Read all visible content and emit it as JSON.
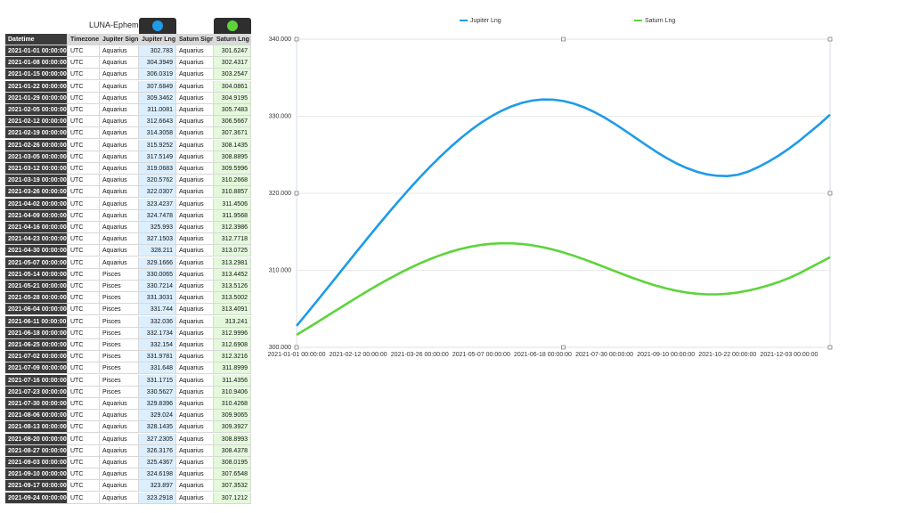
{
  "table": {
    "title": "LUNA-Ephemeris",
    "columns": [
      "Datetime",
      "Timezone",
      "Jupiter Sign",
      "Jupiter Lng",
      "Saturn Sign",
      "Saturn Lng"
    ],
    "rows": [
      [
        "2021-01-01 00:00:00",
        "UTC",
        "Aquarius",
        302.783,
        "Aquarius",
        301.6247
      ],
      [
        "2021-01-08 00:00:00",
        "UTC",
        "Aquarius",
        304.3949,
        "Aquarius",
        302.4317
      ],
      [
        "2021-01-15 00:00:00",
        "UTC",
        "Aquarius",
        306.0319,
        "Aquarius",
        303.2547
      ],
      [
        "2021-01-22 00:00:00",
        "UTC",
        "Aquarius",
        307.6849,
        "Aquarius",
        304.0861
      ],
      [
        "2021-01-29 00:00:00",
        "UTC",
        "Aquarius",
        309.3462,
        "Aquarius",
        304.9195
      ],
      [
        "2021-02-05 00:00:00",
        "UTC",
        "Aquarius",
        311.0081,
        "Aquarius",
        305.7483
      ],
      [
        "2021-02-12 00:00:00",
        "UTC",
        "Aquarius",
        312.6643,
        "Aquarius",
        306.5667
      ],
      [
        "2021-02-19 00:00:00",
        "UTC",
        "Aquarius",
        314.3058,
        "Aquarius",
        307.3671
      ],
      [
        "2021-02-26 00:00:00",
        "UTC",
        "Aquarius",
        315.9252,
        "Aquarius",
        308.1435
      ],
      [
        "2021-03-05 00:00:00",
        "UTC",
        "Aquarius",
        317.5149,
        "Aquarius",
        308.8895
      ],
      [
        "2021-03-12 00:00:00",
        "UTC",
        "Aquarius",
        319.0683,
        "Aquarius",
        309.5996
      ],
      [
        "2021-03-19 00:00:00",
        "UTC",
        "Aquarius",
        320.5762,
        "Aquarius",
        310.2668
      ],
      [
        "2021-03-26 00:00:00",
        "UTC",
        "Aquarius",
        322.0307,
        "Aquarius",
        310.8857
      ],
      [
        "2021-04-02 00:00:00",
        "UTC",
        "Aquarius",
        323.4237,
        "Aquarius",
        311.4506
      ],
      [
        "2021-04-09 00:00:00",
        "UTC",
        "Aquarius",
        324.7478,
        "Aquarius",
        311.9568
      ],
      [
        "2021-04-16 00:00:00",
        "UTC",
        "Aquarius",
        325.993,
        "Aquarius",
        312.3986
      ],
      [
        "2021-04-23 00:00:00",
        "UTC",
        "Aquarius",
        327.1503,
        "Aquarius",
        312.7718
      ],
      [
        "2021-04-30 00:00:00",
        "UTC",
        "Aquarius",
        328.211,
        "Aquarius",
        313.0725
      ],
      [
        "2021-05-07 00:00:00",
        "UTC",
        "Aquarius",
        329.1666,
        "Aquarius",
        313.2981
      ],
      [
        "2021-05-14 00:00:00",
        "UTC",
        "Pisces",
        330.0065,
        "Aquarius",
        313.4452
      ],
      [
        "2021-05-21 00:00:00",
        "UTC",
        "Pisces",
        330.7214,
        "Aquarius",
        313.5126
      ],
      [
        "2021-05-28 00:00:00",
        "UTC",
        "Pisces",
        331.3031,
        "Aquarius",
        313.5002
      ],
      [
        "2021-06-04 00:00:00",
        "UTC",
        "Pisces",
        331.744,
        "Aquarius",
        313.4091
      ],
      [
        "2021-06-11 00:00:00",
        "UTC",
        "Pisces",
        332.036,
        "Aquarius",
        313.241
      ],
      [
        "2021-06-18 00:00:00",
        "UTC",
        "Pisces",
        332.1734,
        "Aquarius",
        312.9996
      ],
      [
        "2021-06-25 00:00:00",
        "UTC",
        "Pisces",
        332.154,
        "Aquarius",
        312.6908
      ],
      [
        "2021-07-02 00:00:00",
        "UTC",
        "Pisces",
        331.9781,
        "Aquarius",
        312.3216
      ],
      [
        "2021-07-09 00:00:00",
        "UTC",
        "Pisces",
        331.648,
        "Aquarius",
        311.8999
      ],
      [
        "2021-07-16 00:00:00",
        "UTC",
        "Pisces",
        331.1715,
        "Aquarius",
        311.4356
      ],
      [
        "2021-07-23 00:00:00",
        "UTC",
        "Pisces",
        330.5627,
        "Aquarius",
        310.9406
      ],
      [
        "2021-07-30 00:00:00",
        "UTC",
        "Aquarius",
        329.8396,
        "Aquarius",
        310.4268
      ],
      [
        "2021-08-06 00:00:00",
        "UTC",
        "Aquarius",
        329.024,
        "Aquarius",
        309.9065
      ],
      [
        "2021-08-13 00:00:00",
        "UTC",
        "Aquarius",
        328.1435,
        "Aquarius",
        309.3927
      ],
      [
        "2021-08-20 00:00:00",
        "UTC",
        "Aquarius",
        327.2305,
        "Aquarius",
        308.8993
      ],
      [
        "2021-08-27 00:00:00",
        "UTC",
        "Aquarius",
        326.3176,
        "Aquarius",
        308.4378
      ],
      [
        "2021-09-03 00:00:00",
        "UTC",
        "Aquarius",
        325.4367,
        "Aquarius",
        308.0195
      ],
      [
        "2021-09-10 00:00:00",
        "UTC",
        "Aquarius",
        324.6198,
        "Aquarius",
        307.6548
      ],
      [
        "2021-09-17 00:00:00",
        "UTC",
        "Aquarius",
        323.897,
        "Aquarius",
        307.3532
      ],
      [
        "2021-09-24 00:00:00",
        "UTC",
        "Aquarius",
        323.2918,
        "Aquarius",
        307.1212
      ]
    ]
  },
  "chart_data": {
    "type": "line",
    "x": [
      "2021-01-01 00:00:00",
      "2021-01-08 00:00:00",
      "2021-01-15 00:00:00",
      "2021-01-22 00:00:00",
      "2021-01-29 00:00:00",
      "2021-02-05 00:00:00",
      "2021-02-12 00:00:00",
      "2021-02-19 00:00:00",
      "2021-02-26 00:00:00",
      "2021-03-05 00:00:00",
      "2021-03-12 00:00:00",
      "2021-03-19 00:00:00",
      "2021-03-26 00:00:00",
      "2021-04-02 00:00:00",
      "2021-04-09 00:00:00",
      "2021-04-16 00:00:00",
      "2021-04-23 00:00:00",
      "2021-04-30 00:00:00",
      "2021-05-07 00:00:00",
      "2021-05-14 00:00:00",
      "2021-05-21 00:00:00",
      "2021-05-28 00:00:00",
      "2021-06-04 00:00:00",
      "2021-06-11 00:00:00",
      "2021-06-18 00:00:00",
      "2021-06-25 00:00:00",
      "2021-07-02 00:00:00",
      "2021-07-09 00:00:00",
      "2021-07-16 00:00:00",
      "2021-07-23 00:00:00",
      "2021-07-30 00:00:00",
      "2021-08-06 00:00:00",
      "2021-08-13 00:00:00",
      "2021-08-20 00:00:00",
      "2021-08-27 00:00:00",
      "2021-09-03 00:00:00",
      "2021-09-10 00:00:00",
      "2021-09-17 00:00:00",
      "2021-09-24 00:00:00",
      "2021-10-01 00:00:00",
      "2021-10-08 00:00:00",
      "2021-10-15 00:00:00",
      "2021-10-22 00:00:00",
      "2021-10-29 00:00:00",
      "2021-11-05 00:00:00",
      "2021-11-12 00:00:00",
      "2021-11-19 00:00:00",
      "2021-11-26 00:00:00",
      "2021-12-03 00:00:00",
      "2021-12-10 00:00:00",
      "2021-12-17 00:00:00",
      "2021-12-24 00:00:00",
      "2021-12-31 00:00:00"
    ],
    "series": [
      {
        "name": "Jupiter Lng",
        "color": "#1e9be9",
        "values": [
          302.783,
          304.3949,
          306.0319,
          307.6849,
          309.3462,
          311.0081,
          312.6643,
          314.3058,
          315.9252,
          317.5149,
          319.0683,
          320.5762,
          322.0307,
          323.4237,
          324.7478,
          325.993,
          327.1503,
          328.211,
          329.1666,
          330.0065,
          330.7214,
          331.3031,
          331.744,
          332.036,
          332.1734,
          332.154,
          331.9781,
          331.648,
          331.1715,
          330.5627,
          329.8396,
          329.024,
          328.1435,
          327.2305,
          326.3176,
          325.4367,
          324.6198,
          323.897,
          323.2918,
          322.8,
          322.45,
          322.27,
          322.23,
          322.4,
          322.8,
          323.4,
          324.1,
          324.9,
          325.8,
          326.8,
          327.9,
          329.0,
          330.2
        ]
      },
      {
        "name": "Saturn Lng",
        "color": "#5cd43a",
        "values": [
          301.6247,
          302.4317,
          303.2547,
          304.0861,
          304.9195,
          305.7483,
          306.5667,
          307.3671,
          308.1435,
          308.8895,
          309.5996,
          310.2668,
          310.8857,
          311.4506,
          311.9568,
          312.3986,
          312.7718,
          313.0725,
          313.2981,
          313.4452,
          313.5126,
          313.5002,
          313.4091,
          313.241,
          312.9996,
          312.6908,
          312.3216,
          311.8999,
          311.4356,
          310.9406,
          310.4268,
          309.9065,
          309.3927,
          308.8993,
          308.4378,
          308.0195,
          307.6548,
          307.3532,
          307.1212,
          306.96,
          306.88,
          306.88,
          306.96,
          307.12,
          307.36,
          307.67,
          308.05,
          308.48,
          309.0,
          309.6,
          310.3,
          311.0,
          311.7
        ]
      }
    ],
    "ylim": [
      300,
      340
    ],
    "yticks": [
      {
        "value": 300,
        "label": "300.000"
      },
      {
        "value": 310,
        "label": "310.000"
      },
      {
        "value": 320,
        "label": "320.000"
      },
      {
        "value": 330,
        "label": "330.000"
      },
      {
        "value": 340,
        "label": "340.000"
      }
    ],
    "grid": true,
    "legend": "top"
  }
}
